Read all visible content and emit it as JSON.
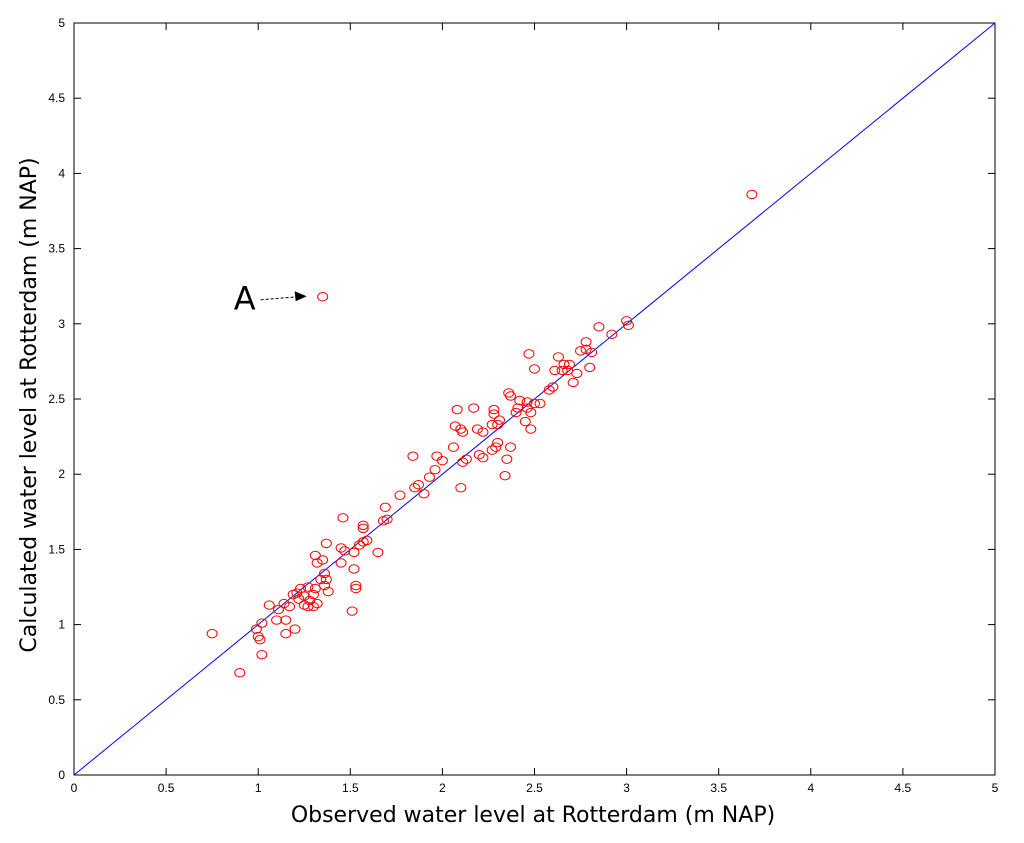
{
  "chart_data": {
    "type": "scatter",
    "title": "",
    "xlabel": "Observed water level at Rotterdam (m NAP)",
    "ylabel": "Calculated water level at Rotterdam (m NAP)",
    "xlim": [
      0,
      5
    ],
    "ylim": [
      0,
      5
    ],
    "xticks": [
      "0",
      "0.5",
      "1",
      "1.5",
      "2",
      "2.5",
      "3",
      "3.5",
      "4",
      "4.5",
      "5"
    ],
    "yticks": [
      "0",
      "0.5",
      "1",
      "1.5",
      "2",
      "2.5",
      "3",
      "3.5",
      "4",
      "4.5",
      "5"
    ],
    "grid": false,
    "legend": "none",
    "marker_color": "#ff0000",
    "line_color": "#0000ff",
    "reference_line": {
      "x": [
        0,
        5
      ],
      "y": [
        0,
        5
      ]
    },
    "annotation": {
      "text": "A",
      "x": 1.35,
      "y": 3.18
    },
    "points": [
      [
        0.75,
        0.94
      ],
      [
        0.9,
        0.68
      ],
      [
        0.99,
        0.97
      ],
      [
        1.0,
        0.92
      ],
      [
        1.02,
        0.8
      ],
      [
        1.01,
        0.9
      ],
      [
        1.02,
        1.01
      ],
      [
        1.06,
        1.13
      ],
      [
        1.1,
        1.03
      ],
      [
        1.11,
        1.1
      ],
      [
        1.14,
        1.14
      ],
      [
        1.15,
        0.94
      ],
      [
        1.15,
        1.03
      ],
      [
        1.17,
        1.12
      ],
      [
        1.19,
        1.2
      ],
      [
        1.2,
        0.97
      ],
      [
        1.22,
        1.17
      ],
      [
        1.21,
        1.21
      ],
      [
        1.23,
        1.24
      ],
      [
        1.25,
        1.19
      ],
      [
        1.25,
        1.13
      ],
      [
        1.27,
        1.12
      ],
      [
        1.28,
        1.16
      ],
      [
        1.27,
        1.25
      ],
      [
        1.3,
        1.2
      ],
      [
        1.3,
        1.12
      ],
      [
        1.32,
        1.14
      ],
      [
        1.31,
        1.24
      ],
      [
        1.31,
        1.46
      ],
      [
        1.32,
        1.41
      ],
      [
        1.34,
        1.3
      ],
      [
        1.35,
        1.43
      ],
      [
        1.36,
        1.34
      ],
      [
        1.37,
        1.3
      ],
      [
        1.36,
        1.26
      ],
      [
        1.38,
        1.22
      ],
      [
        1.37,
        1.54
      ],
      [
        1.45,
        1.51
      ],
      [
        1.46,
        1.71
      ],
      [
        1.47,
        1.49
      ],
      [
        1.45,
        1.41
      ],
      [
        1.51,
        1.09
      ],
      [
        1.52,
        1.37
      ],
      [
        1.53,
        1.24
      ],
      [
        1.53,
        1.26
      ],
      [
        1.52,
        1.48
      ],
      [
        1.55,
        1.53
      ],
      [
        1.57,
        1.55
      ],
      [
        1.57,
        1.64
      ],
      [
        1.57,
        1.66
      ],
      [
        1.59,
        1.56
      ],
      [
        1.65,
        1.48
      ],
      [
        1.68,
        1.69
      ],
      [
        1.69,
        1.78
      ],
      [
        1.7,
        1.7
      ],
      [
        1.77,
        1.86
      ],
      [
        1.84,
        2.12
      ],
      [
        1.85,
        1.91
      ],
      [
        1.87,
        1.93
      ],
      [
        1.9,
        1.87
      ],
      [
        1.93,
        1.98
      ],
      [
        1.96,
        2.03
      ],
      [
        1.97,
        2.12
      ],
      [
        2.0,
        2.09
      ],
      [
        2.06,
        2.18
      ],
      [
        2.07,
        2.32
      ],
      [
        2.08,
        2.43
      ],
      [
        2.1,
        2.3
      ],
      [
        2.1,
        1.91
      ],
      [
        2.11,
        2.28
      ],
      [
        2.11,
        2.08
      ],
      [
        2.13,
        2.1
      ],
      [
        2.17,
        2.44
      ],
      [
        2.19,
        2.3
      ],
      [
        2.2,
        2.13
      ],
      [
        2.22,
        2.11
      ],
      [
        2.22,
        2.28
      ],
      [
        2.27,
        2.16
      ],
      [
        2.27,
        2.33
      ],
      [
        2.28,
        2.43
      ],
      [
        2.28,
        2.4
      ],
      [
        2.29,
        2.18
      ],
      [
        2.3,
        2.33
      ],
      [
        2.3,
        2.21
      ],
      [
        2.31,
        2.36
      ],
      [
        2.34,
        1.99
      ],
      [
        2.35,
        2.1
      ],
      [
        2.37,
        2.18
      ],
      [
        2.36,
        2.54
      ],
      [
        2.37,
        2.52
      ],
      [
        2.4,
        2.41
      ],
      [
        2.41,
        2.44
      ],
      [
        2.42,
        2.49
      ],
      [
        2.45,
        2.35
      ],
      [
        2.46,
        2.44
      ],
      [
        2.47,
        2.8
      ],
      [
        2.46,
        2.48
      ],
      [
        2.48,
        2.3
      ],
      [
        2.48,
        2.41
      ],
      [
        2.5,
        2.47
      ],
      [
        2.5,
        2.7
      ],
      [
        2.53,
        2.47
      ],
      [
        2.58,
        2.56
      ],
      [
        2.6,
        2.58
      ],
      [
        2.61,
        2.69
      ],
      [
        2.63,
        2.78
      ],
      [
        2.65,
        2.69
      ],
      [
        2.66,
        2.73
      ],
      [
        2.68,
        2.69
      ],
      [
        2.69,
        2.73
      ],
      [
        2.71,
        2.61
      ],
      [
        2.73,
        2.67
      ],
      [
        2.75,
        2.82
      ],
      [
        2.78,
        2.88
      ],
      [
        2.78,
        2.83
      ],
      [
        2.8,
        2.71
      ],
      [
        2.81,
        2.81
      ],
      [
        2.85,
        2.98
      ],
      [
        2.92,
        2.93
      ],
      [
        3.0,
        3.02
      ],
      [
        3.01,
        2.99
      ],
      [
        3.68,
        3.86
      ],
      [
        1.35,
        3.18
      ]
    ]
  }
}
